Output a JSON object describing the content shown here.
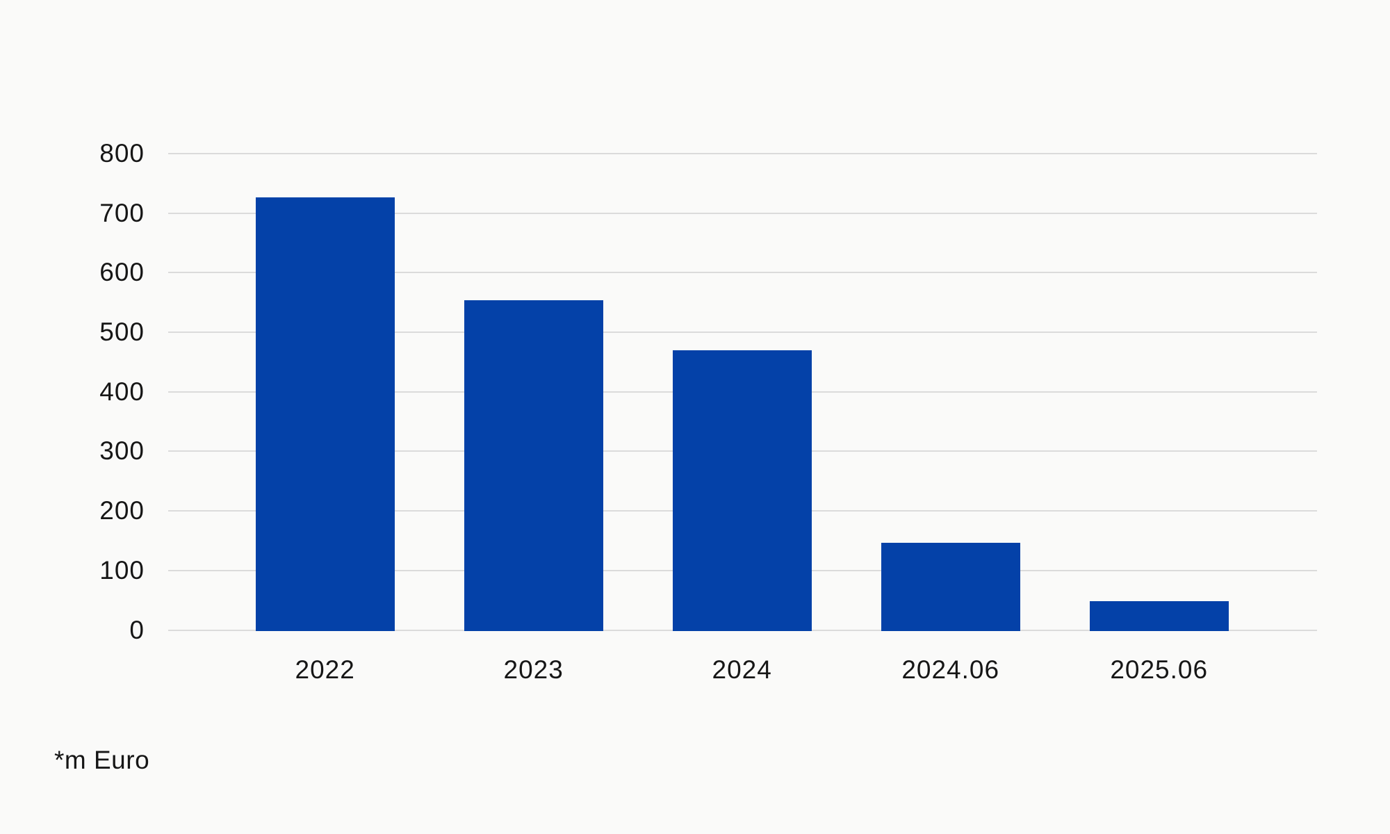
{
  "colors": {
    "background": "#FAFAF9",
    "bar": "#0441A8",
    "gridline": "#DBDBDB",
    "text": "#161616"
  },
  "footnote": "*m Euro",
  "chart_data": {
    "type": "bar",
    "categories": [
      "2022",
      "2023",
      "2024",
      "2024.06",
      "2025.06"
    ],
    "values": [
      727,
      554,
      470,
      147,
      48
    ],
    "title": "",
    "xlabel": "",
    "ylabel": "",
    "ylim": [
      0,
      800
    ],
    "yticks": [
      0,
      100,
      200,
      300,
      400,
      500,
      600,
      700,
      800
    ],
    "grid": "horizontal",
    "legend_position": "none",
    "series_color": "#0441A8",
    "footnote": "*m Euro"
  }
}
